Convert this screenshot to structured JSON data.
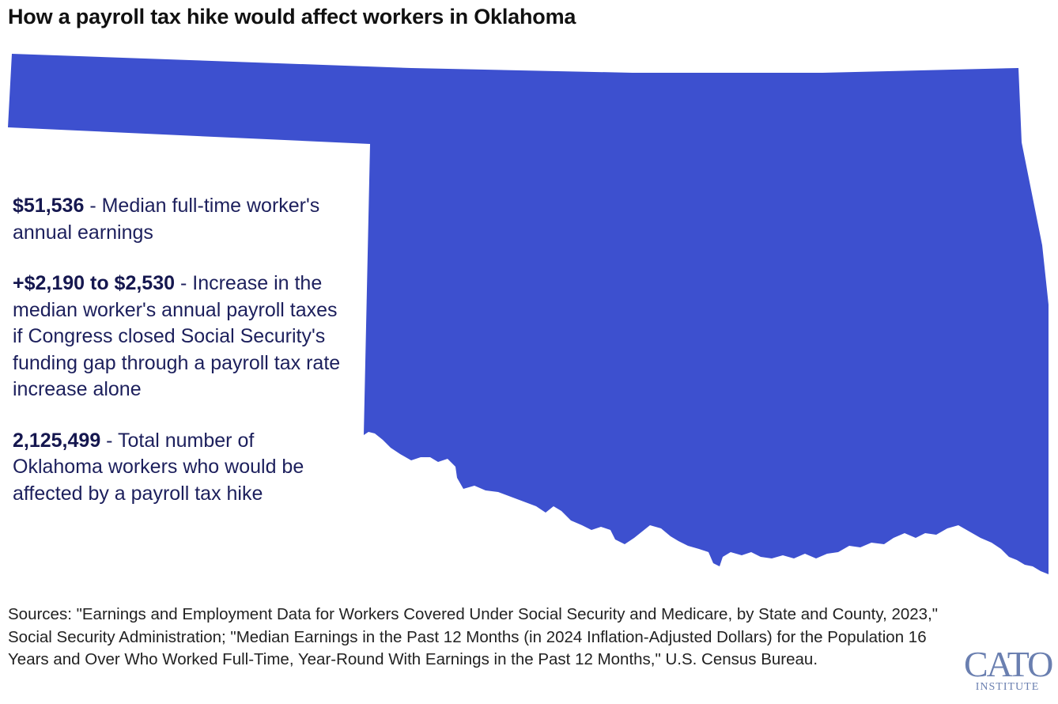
{
  "title": "How a payroll tax hike would affect workers in Oklahoma",
  "map": {
    "region": "Oklahoma",
    "fill_color": "#3d50cf"
  },
  "stats": [
    {
      "value": "$51,536",
      "description": " - Median full-time worker's annual earnings"
    },
    {
      "value": "+$2,190 to $2,530",
      "description": " - Increase in the median worker's annual payroll taxes if Congress closed Social Security's funding gap through a payroll tax rate increase alone"
    },
    {
      "value": "2,125,499",
      "description": " - Total number of Oklahoma workers who would be affected by a payroll tax hike"
    }
  ],
  "sources": "Sources: \"Earnings and Employment Data for Workers Covered Under Social Security and Medicare, by State and County, 2023,\" Social Security Administration; \"Median Earnings in the Past 12 Months (in 2024 Inflation-Adjusted Dollars) for the Population 16 Years and Over Who Worked Full-Time, Year-Round With Earnings in the Past 12 Months,\" U.S. Census Bureau.",
  "logo": {
    "main": "CATO",
    "sub": "INSTITUTE"
  }
}
